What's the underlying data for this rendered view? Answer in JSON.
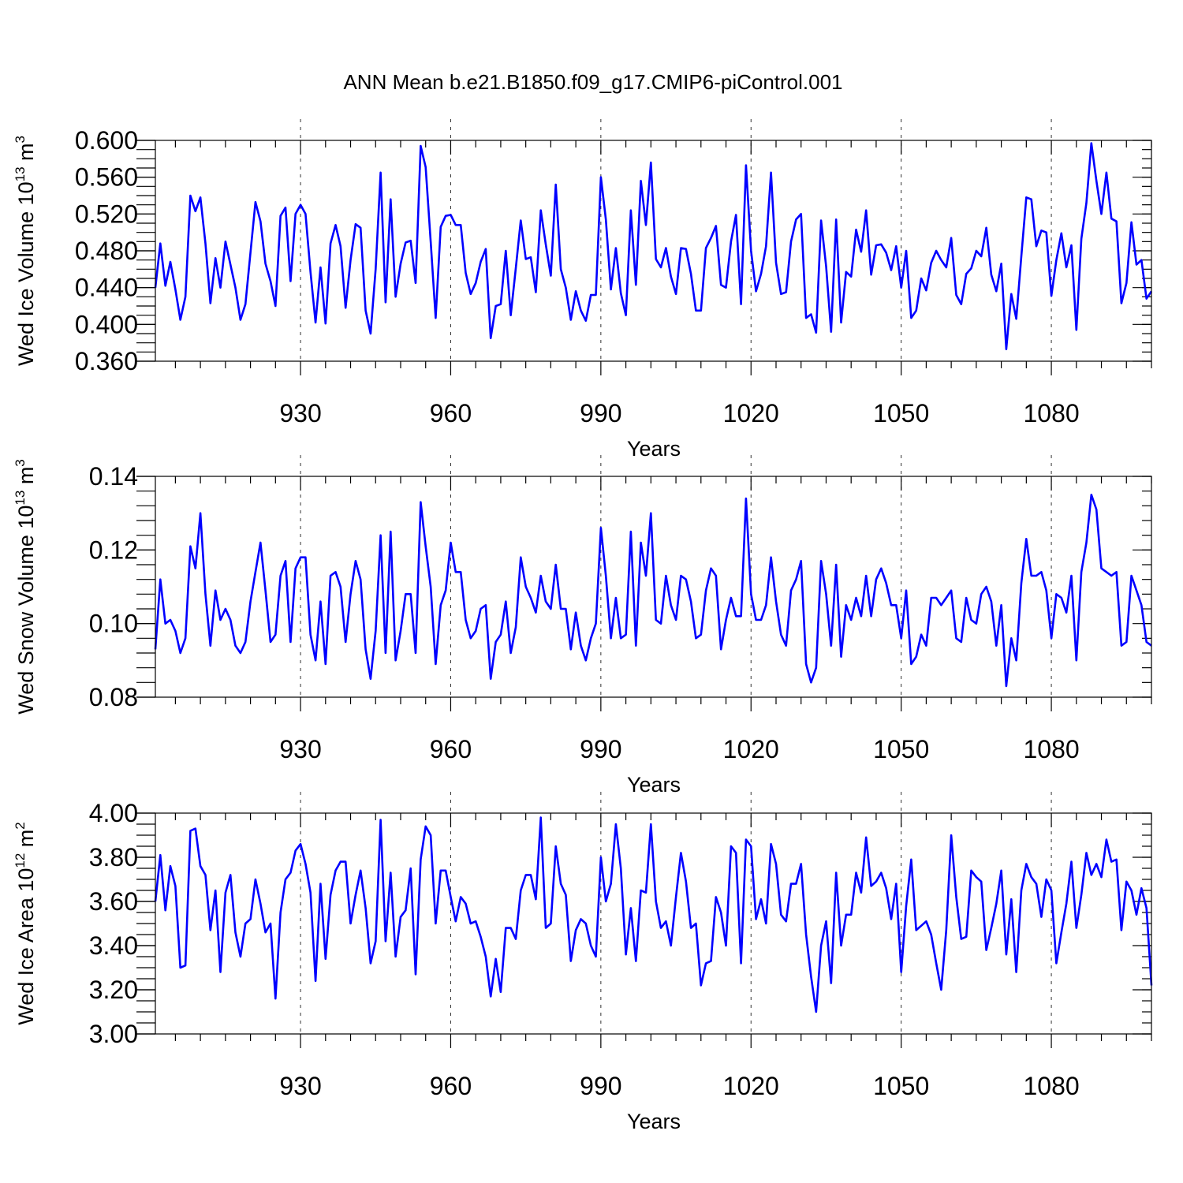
{
  "figure_title": "ANN Mean b.e21.B1850.f09_g17.CMIP6-piControl.001",
  "colors": {
    "series": "#0000ff",
    "axes": "#000000",
    "background": "#ffffff"
  },
  "chart_data": [
    {
      "type": "line",
      "ylabel_main": "Wed Ice Volume 10",
      "ylabel_exp": "13",
      "ylabel_unit": " m",
      "ylabel_unit_exp": "3",
      "xlabel": "Years",
      "xlim": [
        901,
        1100
      ],
      "ylim": [
        0.36,
        0.6
      ],
      "xticks": [
        930,
        960,
        990,
        1020,
        1050,
        1080
      ],
      "xtick_labels": [
        "930",
        "960",
        "990",
        "1020",
        "1050",
        "1080"
      ],
      "yticks": [
        0.36,
        0.4,
        0.44,
        0.48,
        0.52,
        0.56,
        0.6
      ],
      "ytick_labels": [
        "0.360",
        "0.400",
        "0.440",
        "0.480",
        "0.520",
        "0.560",
        "0.600"
      ],
      "minor_ystep": 0.01,
      "x_start": 901,
      "values": [
        0.44,
        0.488,
        0.442,
        0.468,
        0.438,
        0.405,
        0.43,
        0.54,
        0.523,
        0.538,
        0.488,
        0.423,
        0.472,
        0.44,
        0.49,
        0.465,
        0.44,
        0.405,
        0.422,
        0.478,
        0.533,
        0.512,
        0.466,
        0.447,
        0.42,
        0.518,
        0.527,
        0.447,
        0.52,
        0.53,
        0.52,
        0.457,
        0.402,
        0.462,
        0.401,
        0.488,
        0.508,
        0.485,
        0.418,
        0.47,
        0.509,
        0.505,
        0.415,
        0.39,
        0.46,
        0.565,
        0.424,
        0.536,
        0.43,
        0.466,
        0.489,
        0.491,
        0.445,
        0.594,
        0.571,
        0.49,
        0.407,
        0.506,
        0.518,
        0.519,
        0.508,
        0.508,
        0.456,
        0.433,
        0.445,
        0.468,
        0.482,
        0.385,
        0.42,
        0.422,
        0.48,
        0.41,
        0.461,
        0.513,
        0.471,
        0.473,
        0.435,
        0.524,
        0.487,
        0.453,
        0.552,
        0.46,
        0.44,
        0.405,
        0.436,
        0.415,
        0.404,
        0.432,
        0.432,
        0.56,
        0.514,
        0.438,
        0.483,
        0.434,
        0.41,
        0.524,
        0.443,
        0.556,
        0.508,
        0.576,
        0.471,
        0.462,
        0.483,
        0.452,
        0.433,
        0.483,
        0.482,
        0.455,
        0.415,
        0.415,
        0.483,
        0.494,
        0.507,
        0.443,
        0.44,
        0.49,
        0.519,
        0.422,
        0.573,
        0.48,
        0.436,
        0.455,
        0.485,
        0.565,
        0.467,
        0.433,
        0.435,
        0.49,
        0.514,
        0.52,
        0.407,
        0.411,
        0.391,
        0.513,
        0.463,
        0.392,
        0.514,
        0.402,
        0.457,
        0.452,
        0.503,
        0.479,
        0.524,
        0.454,
        0.486,
        0.487,
        0.478,
        0.459,
        0.485,
        0.44,
        0.48,
        0.407,
        0.415,
        0.45,
        0.437,
        0.467,
        0.48,
        0.47,
        0.462,
        0.494,
        0.432,
        0.422,
        0.455,
        0.461,
        0.48,
        0.474,
        0.505,
        0.454,
        0.436,
        0.466,
        0.373,
        0.433,
        0.406,
        0.474,
        0.538,
        0.536,
        0.485,
        0.502,
        0.5,
        0.431,
        0.47,
        0.499,
        0.462,
        0.486,
        0.394,
        0.493,
        0.532,
        0.597,
        0.556,
        0.52,
        0.565,
        0.515,
        0.512,
        0.423,
        0.445,
        0.511,
        0.465,
        0.47,
        0.428,
        0.436
      ]
    },
    {
      "type": "line",
      "ylabel_main": "Wed Snow Volume 10",
      "ylabel_exp": "13",
      "ylabel_unit": " m",
      "ylabel_unit_exp": "3",
      "xlabel": "Years",
      "xlim": [
        901,
        1100
      ],
      "ylim": [
        0.08,
        0.14
      ],
      "xticks": [
        930,
        960,
        990,
        1020,
        1050,
        1080
      ],
      "xtick_labels": [
        "930",
        "960",
        "990",
        "1020",
        "1050",
        "1080"
      ],
      "yticks": [
        0.08,
        0.1,
        0.12,
        0.14
      ],
      "ytick_labels": [
        "0.08",
        "0.10",
        "0.12",
        "0.14"
      ],
      "minor_ystep": 0.004,
      "x_start": 901,
      "values": [
        0.093,
        0.112,
        0.1,
        0.101,
        0.098,
        0.092,
        0.096,
        0.121,
        0.115,
        0.13,
        0.108,
        0.094,
        0.109,
        0.101,
        0.104,
        0.101,
        0.094,
        0.092,
        0.095,
        0.106,
        0.114,
        0.122,
        0.109,
        0.095,
        0.097,
        0.113,
        0.117,
        0.095,
        0.115,
        0.118,
        0.118,
        0.097,
        0.09,
        0.106,
        0.089,
        0.113,
        0.114,
        0.11,
        0.095,
        0.108,
        0.117,
        0.112,
        0.093,
        0.085,
        0.098,
        0.124,
        0.092,
        0.125,
        0.09,
        0.098,
        0.108,
        0.108,
        0.092,
        0.133,
        0.121,
        0.11,
        0.089,
        0.105,
        0.109,
        0.122,
        0.114,
        0.114,
        0.101,
        0.096,
        0.098,
        0.104,
        0.105,
        0.085,
        0.095,
        0.097,
        0.106,
        0.092,
        0.099,
        0.118,
        0.11,
        0.107,
        0.103,
        0.113,
        0.106,
        0.104,
        0.116,
        0.104,
        0.104,
        0.093,
        0.103,
        0.094,
        0.09,
        0.096,
        0.1,
        0.126,
        0.113,
        0.096,
        0.107,
        0.096,
        0.097,
        0.125,
        0.094,
        0.122,
        0.113,
        0.13,
        0.101,
        0.1,
        0.113,
        0.105,
        0.101,
        0.113,
        0.112,
        0.106,
        0.096,
        0.097,
        0.109,
        0.115,
        0.113,
        0.093,
        0.101,
        0.107,
        0.102,
        0.102,
        0.134,
        0.108,
        0.101,
        0.101,
        0.105,
        0.118,
        0.106,
        0.097,
        0.094,
        0.109,
        0.112,
        0.117,
        0.089,
        0.084,
        0.088,
        0.117,
        0.108,
        0.094,
        0.116,
        0.091,
        0.105,
        0.101,
        0.107,
        0.102,
        0.113,
        0.102,
        0.112,
        0.115,
        0.111,
        0.105,
        0.105,
        0.096,
        0.109,
        0.089,
        0.091,
        0.097,
        0.094,
        0.107,
        0.107,
        0.105,
        0.107,
        0.109,
        0.096,
        0.095,
        0.107,
        0.101,
        0.1,
        0.108,
        0.11,
        0.106,
        0.094,
        0.105,
        0.083,
        0.096,
        0.09,
        0.111,
        0.123,
        0.113,
        0.113,
        0.114,
        0.109,
        0.096,
        0.108,
        0.107,
        0.103,
        0.113,
        0.09,
        0.114,
        0.122,
        0.135,
        0.131,
        0.115,
        0.114,
        0.113,
        0.114,
        0.094,
        0.095,
        0.113,
        0.109,
        0.105,
        0.095,
        0.094
      ]
    },
    {
      "type": "line",
      "ylabel_main": "Wed Ice Area 10",
      "ylabel_exp": "12",
      "ylabel_unit": " m",
      "ylabel_unit_exp": "2",
      "xlabel": "Years",
      "xlim": [
        901,
        1100
      ],
      "ylim": [
        3.0,
        4.0
      ],
      "xticks": [
        930,
        960,
        990,
        1020,
        1050,
        1080
      ],
      "xtick_labels": [
        "930",
        "960",
        "990",
        "1020",
        "1050",
        "1080"
      ],
      "yticks": [
        3.0,
        3.2,
        3.4,
        3.6,
        3.8,
        4.0
      ],
      "ytick_labels": [
        "3.00",
        "3.20",
        "3.40",
        "3.60",
        "3.80",
        "4.00"
      ],
      "minor_ystep": 0.05,
      "x_start": 901,
      "values": [
        3.6,
        3.81,
        3.56,
        3.76,
        3.67,
        3.3,
        3.31,
        3.92,
        3.93,
        3.76,
        3.72,
        3.47,
        3.65,
        3.28,
        3.64,
        3.72,
        3.46,
        3.35,
        3.5,
        3.52,
        3.7,
        3.59,
        3.46,
        3.5,
        3.16,
        3.55,
        3.7,
        3.73,
        3.83,
        3.86,
        3.77,
        3.64,
        3.24,
        3.68,
        3.34,
        3.63,
        3.74,
        3.78,
        3.78,
        3.5,
        3.63,
        3.74,
        3.57,
        3.32,
        3.42,
        3.97,
        3.42,
        3.73,
        3.35,
        3.53,
        3.56,
        3.75,
        3.27,
        3.79,
        3.94,
        3.9,
        3.5,
        3.74,
        3.74,
        3.62,
        3.51,
        3.62,
        3.59,
        3.5,
        3.51,
        3.44,
        3.35,
        3.17,
        3.34,
        3.19,
        3.48,
        3.48,
        3.43,
        3.65,
        3.72,
        3.72,
        3.61,
        3.98,
        3.48,
        3.5,
        3.85,
        3.68,
        3.63,
        3.33,
        3.47,
        3.52,
        3.5,
        3.4,
        3.35,
        3.8,
        3.6,
        3.68,
        3.95,
        3.75,
        3.36,
        3.57,
        3.33,
        3.65,
        3.64,
        3.95,
        3.6,
        3.48,
        3.51,
        3.4,
        3.62,
        3.82,
        3.69,
        3.48,
        3.5,
        3.22,
        3.32,
        3.33,
        3.62,
        3.55,
        3.4,
        3.85,
        3.82,
        3.32,
        3.88,
        3.85,
        3.52,
        3.61,
        3.5,
        3.86,
        3.77,
        3.54,
        3.51,
        3.68,
        3.68,
        3.77,
        3.45,
        3.26,
        3.1,
        3.4,
        3.51,
        3.23,
        3.73,
        3.4,
        3.54,
        3.54,
        3.73,
        3.64,
        3.89,
        3.67,
        3.69,
        3.73,
        3.66,
        3.52,
        3.68,
        3.28,
        3.58,
        3.79,
        3.47,
        3.49,
        3.51,
        3.45,
        3.32,
        3.2,
        3.47,
        3.9,
        3.62,
        3.43,
        3.44,
        3.74,
        3.71,
        3.69,
        3.38,
        3.48,
        3.59,
        3.74,
        3.36,
        3.61,
        3.28,
        3.65,
        3.77,
        3.71,
        3.68,
        3.53,
        3.7,
        3.65,
        3.32,
        3.46,
        3.59,
        3.78,
        3.48,
        3.63,
        3.82,
        3.72,
        3.77,
        3.71,
        3.88,
        3.78,
        3.79,
        3.47,
        3.69,
        3.65,
        3.54,
        3.66,
        3.57,
        3.22
      ]
    }
  ]
}
